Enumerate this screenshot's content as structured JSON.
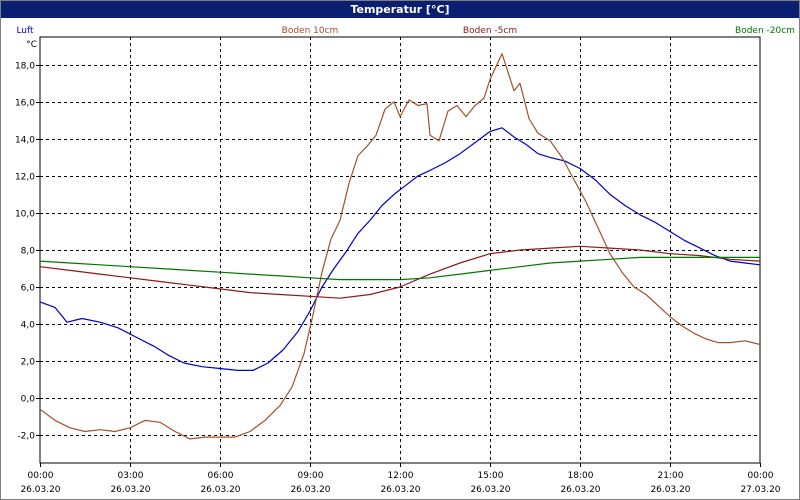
{
  "window": {
    "title": "Temperatur [°C]"
  },
  "chart_data": {
    "type": "line",
    "title": "Temperatur [°C]",
    "ylabel": "°C",
    "xlabel": "",
    "xlim": [
      0,
      24
    ],
    "ylim": [
      -3.5,
      19.5
    ],
    "yticks": [
      -2,
      0,
      2,
      4,
      6,
      8,
      10,
      12,
      14,
      16,
      18
    ],
    "ytick_labels": [
      "-2,0",
      "0,0",
      "2,0",
      "4,0",
      "6,0",
      "8,0",
      "10,0",
      "12,0",
      "14,0",
      "16,0",
      "18,0"
    ],
    "xticks": [
      0,
      3,
      6,
      9,
      12,
      15,
      18,
      21,
      24
    ],
    "xtick_times": [
      "00:00",
      "03:00",
      "06:00",
      "09:00",
      "12:00",
      "15:00",
      "18:00",
      "21:00",
      "00:00"
    ],
    "xtick_dates": [
      "26.03.20",
      "26.03.20",
      "26.03.20",
      "26.03.20",
      "26.03.20",
      "26.03.20",
      "26.03.20",
      "26.03.20",
      "27.03.20"
    ],
    "grid": true,
    "legend_position": "top",
    "series": [
      {
        "name": "Luft",
        "color": "#0000cc",
        "points": [
          [
            0,
            5.2
          ],
          [
            0.5,
            4.9
          ],
          [
            0.9,
            4.1
          ],
          [
            1.4,
            4.3
          ],
          [
            2.0,
            4.1
          ],
          [
            2.6,
            3.8
          ],
          [
            3.2,
            3.3
          ],
          [
            3.8,
            2.8
          ],
          [
            4.3,
            2.3
          ],
          [
            4.8,
            1.9
          ],
          [
            5.4,
            1.7
          ],
          [
            6.0,
            1.6
          ],
          [
            6.6,
            1.5
          ],
          [
            7.1,
            1.5
          ],
          [
            7.6,
            1.9
          ],
          [
            8.1,
            2.6
          ],
          [
            8.6,
            3.6
          ],
          [
            9.0,
            4.7
          ],
          [
            9.4,
            6.0
          ],
          [
            9.8,
            7.0
          ],
          [
            10.2,
            7.9
          ],
          [
            10.6,
            8.9
          ],
          [
            11.0,
            9.6
          ],
          [
            11.4,
            10.4
          ],
          [
            11.8,
            11.0
          ],
          [
            12.2,
            11.5
          ],
          [
            12.6,
            12.0
          ],
          [
            13.0,
            12.3
          ],
          [
            13.5,
            12.7
          ],
          [
            14.0,
            13.2
          ],
          [
            14.5,
            13.8
          ],
          [
            15.0,
            14.4
          ],
          [
            15.4,
            14.6
          ],
          [
            15.8,
            14.1
          ],
          [
            16.2,
            13.7
          ],
          [
            16.6,
            13.2
          ],
          [
            17.0,
            13.0
          ],
          [
            17.5,
            12.8
          ],
          [
            18.0,
            12.4
          ],
          [
            18.5,
            11.8
          ],
          [
            19.0,
            11.0
          ],
          [
            19.5,
            10.4
          ],
          [
            20.0,
            9.9
          ],
          [
            20.5,
            9.5
          ],
          [
            21.0,
            9.0
          ],
          [
            21.5,
            8.5
          ],
          [
            22.0,
            8.1
          ],
          [
            22.5,
            7.7
          ],
          [
            23.0,
            7.4
          ],
          [
            23.5,
            7.3
          ],
          [
            24.0,
            7.2
          ]
        ]
      },
      {
        "name": "Boden 10cm",
        "color": "#a0522d",
        "points": [
          [
            0,
            -0.6
          ],
          [
            0.5,
            -1.2
          ],
          [
            1.0,
            -1.6
          ],
          [
            1.5,
            -1.8
          ],
          [
            2.0,
            -1.7
          ],
          [
            2.5,
            -1.8
          ],
          [
            3.0,
            -1.6
          ],
          [
            3.5,
            -1.2
          ],
          [
            4.0,
            -1.3
          ],
          [
            4.5,
            -1.8
          ],
          [
            5.0,
            -2.2
          ],
          [
            5.5,
            -2.1
          ],
          [
            6.0,
            -2.1
          ],
          [
            6.5,
            -2.1
          ],
          [
            7.0,
            -1.8
          ],
          [
            7.5,
            -1.2
          ],
          [
            8.0,
            -0.4
          ],
          [
            8.4,
            0.6
          ],
          [
            8.8,
            2.4
          ],
          [
            9.1,
            4.5
          ],
          [
            9.4,
            6.8
          ],
          [
            9.7,
            8.6
          ],
          [
            10.0,
            9.6
          ],
          [
            10.3,
            11.6
          ],
          [
            10.6,
            13.1
          ],
          [
            10.9,
            13.6
          ],
          [
            11.2,
            14.2
          ],
          [
            11.5,
            15.6
          ],
          [
            11.8,
            16.0
          ],
          [
            12.0,
            15.2
          ],
          [
            12.3,
            16.1
          ],
          [
            12.6,
            15.8
          ],
          [
            12.9,
            15.9
          ],
          [
            13.0,
            14.2
          ],
          [
            13.3,
            13.9
          ],
          [
            13.6,
            15.5
          ],
          [
            13.9,
            15.8
          ],
          [
            14.2,
            15.2
          ],
          [
            14.5,
            15.8
          ],
          [
            14.8,
            16.2
          ],
          [
            15.0,
            17.2
          ],
          [
            15.2,
            17.9
          ],
          [
            15.4,
            18.6
          ],
          [
            15.6,
            17.6
          ],
          [
            15.8,
            16.6
          ],
          [
            16.0,
            17.0
          ],
          [
            16.3,
            15.1
          ],
          [
            16.6,
            14.3
          ],
          [
            17.0,
            13.9
          ],
          [
            17.4,
            13.0
          ],
          [
            17.8,
            11.8
          ],
          [
            18.2,
            10.6
          ],
          [
            18.6,
            9.2
          ],
          [
            19.0,
            7.8
          ],
          [
            19.4,
            6.8
          ],
          [
            19.8,
            6.0
          ],
          [
            20.2,
            5.6
          ],
          [
            20.6,
            5.0
          ],
          [
            21.0,
            4.4
          ],
          [
            21.4,
            3.9
          ],
          [
            21.8,
            3.5
          ],
          [
            22.2,
            3.2
          ],
          [
            22.6,
            3.0
          ],
          [
            23.0,
            3.0
          ],
          [
            23.5,
            3.1
          ],
          [
            24.0,
            2.9
          ]
        ]
      },
      {
        "name": "Boden -5cm",
        "color": "#8b1a1a",
        "points": [
          [
            0,
            7.1
          ],
          [
            1,
            6.9
          ],
          [
            2,
            6.7
          ],
          [
            3,
            6.5
          ],
          [
            4,
            6.3
          ],
          [
            5,
            6.1
          ],
          [
            6,
            5.9
          ],
          [
            7,
            5.7
          ],
          [
            8,
            5.6
          ],
          [
            9,
            5.5
          ],
          [
            10,
            5.4
          ],
          [
            11,
            5.6
          ],
          [
            12,
            6.0
          ],
          [
            13,
            6.7
          ],
          [
            14,
            7.3
          ],
          [
            15,
            7.8
          ],
          [
            16,
            8.0
          ],
          [
            17,
            8.1
          ],
          [
            18,
            8.2
          ],
          [
            19,
            8.1
          ],
          [
            20,
            8.0
          ],
          [
            21,
            7.8
          ],
          [
            22,
            7.7
          ],
          [
            23,
            7.5
          ],
          [
            24,
            7.4
          ]
        ]
      },
      {
        "name": "Boden -20cm",
        "color": "#007700",
        "points": [
          [
            0,
            7.4
          ],
          [
            1,
            7.3
          ],
          [
            2,
            7.2
          ],
          [
            3,
            7.1
          ],
          [
            4,
            7.0
          ],
          [
            5,
            6.9
          ],
          [
            6,
            6.8
          ],
          [
            7,
            6.7
          ],
          [
            8,
            6.6
          ],
          [
            9,
            6.5
          ],
          [
            10,
            6.4
          ],
          [
            11,
            6.4
          ],
          [
            12,
            6.4
          ],
          [
            13,
            6.5
          ],
          [
            14,
            6.7
          ],
          [
            15,
            6.9
          ],
          [
            16,
            7.1
          ],
          [
            17,
            7.3
          ],
          [
            18,
            7.4
          ],
          [
            19,
            7.5
          ],
          [
            20,
            7.6
          ],
          [
            21,
            7.6
          ],
          [
            22,
            7.6
          ],
          [
            23,
            7.6
          ],
          [
            24,
            7.6
          ]
        ]
      }
    ]
  }
}
